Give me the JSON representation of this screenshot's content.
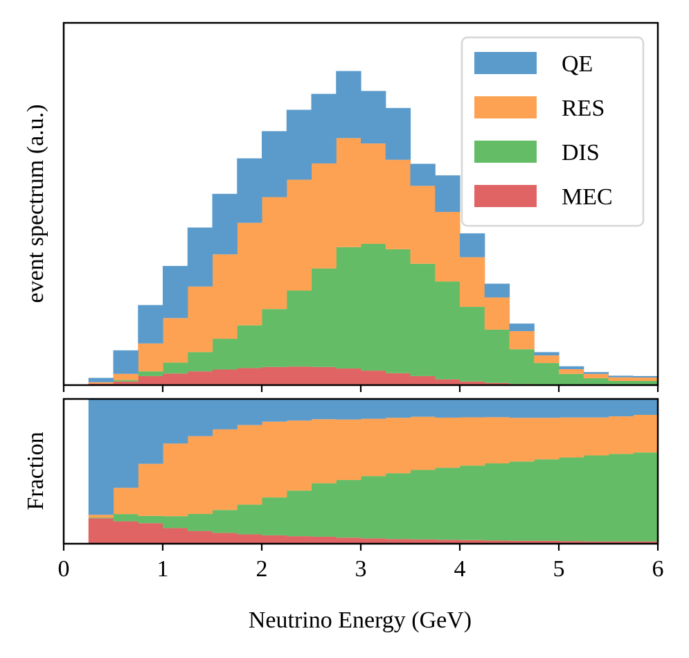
{
  "chart_data": {
    "type": "bar",
    "stacked": true,
    "bin_width": 0.25,
    "x": [
      0.0,
      0.25,
      0.5,
      0.75,
      1.0,
      1.25,
      1.5,
      1.75,
      2.0,
      2.25,
      2.5,
      2.75,
      3.0,
      3.25,
      3.5,
      3.75,
      4.0,
      4.25,
      4.5,
      4.75,
      5.0,
      5.25,
      5.5,
      5.75
    ],
    "xlabel": "Neutrino Energy (GeV)",
    "xlim": [
      0,
      6
    ],
    "xticks": [
      0,
      1,
      2,
      3,
      4,
      5,
      6
    ],
    "colors": {
      "QE": "#5b9bcc",
      "RES": "#fda253",
      "DIS": "#64bd66",
      "MEC": "#e06464"
    },
    "top_panel": {
      "ylabel": "event spectrum (a.u.)",
      "ylim": [
        0,
        100
      ],
      "series": [
        {
          "name": "MEC",
          "values": [
            0,
            0.4,
            1.0,
            2.5,
            3.2,
            3.8,
            4.3,
            4.7,
            5.0,
            5.1,
            5.0,
            4.6,
            4.0,
            3.3,
            2.5,
            1.6,
            1.0,
            0.6,
            0.3,
            0.2,
            0.1,
            0.1,
            0.05,
            0.05
          ]
        },
        {
          "name": "DIS",
          "values": [
            0,
            0.0,
            0.4,
            1.3,
            3.0,
            5.3,
            8.5,
            11.8,
            16.0,
            21.0,
            27.2,
            33.5,
            35.0,
            34.2,
            31.0,
            27.0,
            20.6,
            14.7,
            9.6,
            5.9,
            3.0,
            1.8,
            1.1,
            1.1
          ]
        },
        {
          "name": "RES",
          "values": [
            0,
            0.4,
            1.7,
            7.7,
            12.3,
            18.1,
            23.3,
            28.3,
            30.9,
            30.6,
            29.0,
            30.1,
            27.7,
            24.7,
            21.5,
            19.2,
            13.7,
            8.9,
            5.0,
            2.1,
            1.3,
            1.2,
            1.0,
            0.95
          ]
        },
        {
          "name": "QE",
          "values": [
            0,
            1.2,
            6.5,
            10.6,
            14.4,
            16.3,
            16.7,
            17.8,
            18.2,
            19.3,
            19.2,
            18.5,
            14.5,
            14.3,
            6.1,
            10.1,
            6.6,
            3.8,
            2.1,
            0.9,
            0.8,
            0.5,
            0.45,
            0.4
          ]
        }
      ]
    },
    "bottom_panel": {
      "ylabel": "Fraction",
      "ylim": [
        0,
        1
      ],
      "series": [
        {
          "name": "MEC",
          "values": [
            0,
            0.175,
            0.155,
            0.142,
            0.108,
            0.088,
            0.075,
            0.065,
            0.058,
            0.052,
            0.048,
            0.042,
            0.037,
            0.032,
            0.03,
            0.027,
            0.025,
            0.022,
            0.02,
            0.02,
            0.018,
            0.016,
            0.016,
            0.016
          ]
        },
        {
          "name": "DIS",
          "values": [
            0,
            0.005,
            0.05,
            0.05,
            0.082,
            0.118,
            0.158,
            0.205,
            0.262,
            0.315,
            0.37,
            0.398,
            0.43,
            0.455,
            0.48,
            0.498,
            0.515,
            0.533,
            0.548,
            0.563,
            0.578,
            0.594,
            0.604,
            0.614
          ]
        },
        {
          "name": "RES",
          "values": [
            0,
            0.02,
            0.181,
            0.36,
            0.502,
            0.537,
            0.557,
            0.55,
            0.523,
            0.484,
            0.442,
            0.418,
            0.396,
            0.383,
            0.367,
            0.346,
            0.333,
            0.319,
            0.302,
            0.287,
            0.276,
            0.262,
            0.26,
            0.26
          ]
        },
        {
          "name": "QE",
          "values": [
            0,
            0.8,
            0.614,
            0.448,
            0.308,
            0.257,
            0.21,
            0.18,
            0.157,
            0.149,
            0.14,
            0.142,
            0.137,
            0.13,
            0.123,
            0.129,
            0.127,
            0.126,
            0.13,
            0.13,
            0.128,
            0.128,
            0.12,
            0.11
          ]
        }
      ]
    },
    "legend": {
      "position": "upper right",
      "entries": [
        "QE",
        "RES",
        "DIS",
        "MEC"
      ]
    }
  }
}
